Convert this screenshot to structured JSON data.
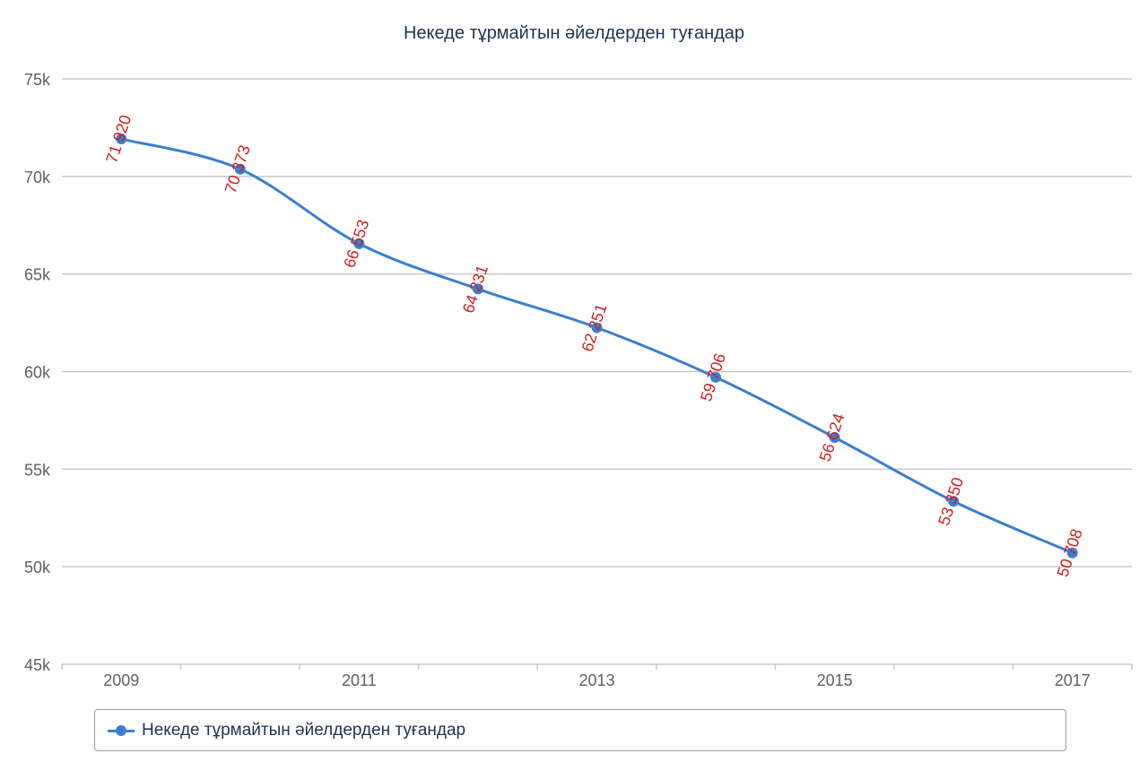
{
  "chart_data": {
    "type": "line",
    "title": "Некеде тұрмайтын әйелдерден туғандар",
    "categories": [
      "2009",
      "2010",
      "2011",
      "2012",
      "2013",
      "2014",
      "2015",
      "2016",
      "2017"
    ],
    "x_tick_labels": [
      "2009",
      "2011",
      "2013",
      "2015",
      "2017"
    ],
    "series": [
      {
        "name": "Некеде тұрмайтын әйелдерден туғандар",
        "values": [
          71920,
          70373,
          66553,
          64231,
          62251,
          59706,
          56624,
          53350,
          50708
        ],
        "data_labels": [
          "71 920",
          "70 373",
          "66 553",
          "64 231",
          "62 251",
          "59 706",
          "56 624",
          "53 350",
          "50 708"
        ],
        "color": "#3a7fd1"
      }
    ],
    "ylim": [
      45000,
      75000
    ],
    "y_ticks": [
      45000,
      50000,
      55000,
      60000,
      65000,
      70000,
      75000
    ],
    "y_tick_labels": [
      "45k",
      "50k",
      "55k",
      "60k",
      "65k",
      "70k",
      "75k"
    ],
    "grid": true,
    "smooth": true,
    "legend_position": "bottom",
    "label_color": "#cc1f1f",
    "xlabel": "",
    "ylabel": ""
  }
}
